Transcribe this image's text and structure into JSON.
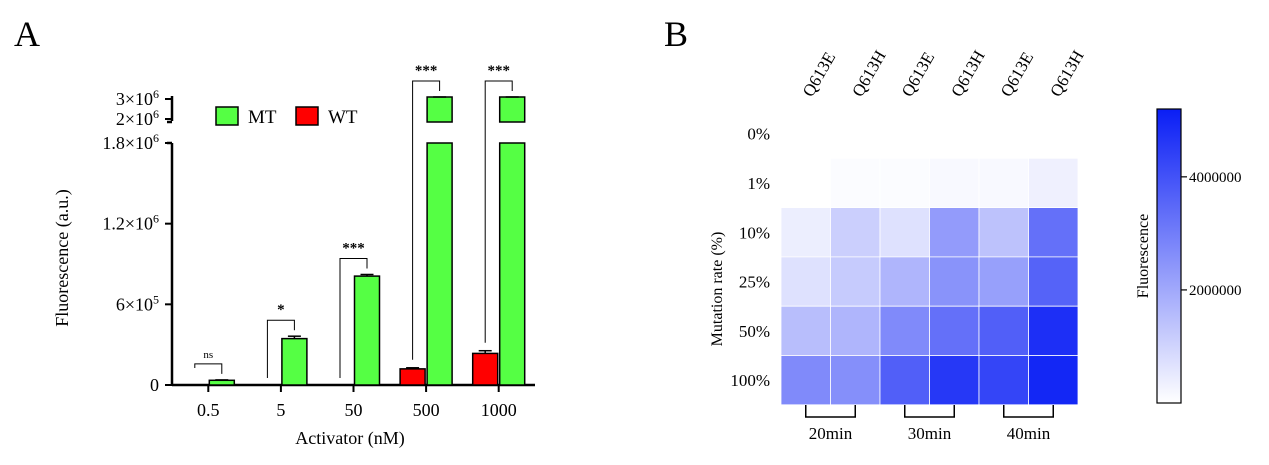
{
  "chart_data": [
    {
      "panel_label": "A",
      "type": "bar",
      "ylabel": "Fluorescence (a.u.)",
      "xlabel": "Activator (nM)",
      "categories": [
        "0.5",
        "5",
        "50",
        "500",
        "1000"
      ],
      "series": [
        {
          "name": "WT",
          "color": "#ff0000",
          "values": [
            0,
            0,
            0,
            120000,
            235000
          ],
          "errors": [
            0,
            0,
            0,
            8000,
            20000
          ]
        },
        {
          "name": "MT",
          "color": "#55ff44",
          "values": [
            35000,
            345000,
            810000,
            3100000,
            3150000
          ],
          "errors": [
            3000,
            18000,
            12000,
            60000,
            70000
          ]
        }
      ],
      "y_axis_lower": {
        "ylim": [
          0,
          1800000
        ],
        "ticks": [
          0,
          600000,
          1200000,
          1800000
        ],
        "tick_labels": [
          "0",
          "6×10",
          "1.2×10",
          "1.8×10"
        ],
        "tick_exponents": [
          "",
          "5",
          "6",
          "6"
        ]
      },
      "y_axis_upper": {
        "ylim": [
          2000000,
          3000000
        ],
        "ticks": [
          2000000,
          3000000
        ],
        "tick_labels": [
          "2×10",
          "3×10"
        ],
        "tick_exponents": [
          "6",
          "6"
        ]
      },
      "significance": [
        "ns",
        "*",
        "***",
        "***",
        "***"
      ]
    },
    {
      "panel_label": "B",
      "type": "heatmap",
      "ylabel": "Mutation rate (%)",
      "colorbar_label": "Fluorescence",
      "column_labels": [
        "Q613E",
        "Q613H",
        "Q613E",
        "Q613H",
        "Q613E",
        "Q613H"
      ],
      "time_groups": [
        "20min",
        "30min",
        "40min"
      ],
      "row_labels": [
        "0%",
        "1%",
        "10%",
        "25%",
        "50%",
        "100%"
      ],
      "values": [
        [
          null,
          null,
          null,
          null,
          null,
          null
        ],
        [
          0,
          80000,
          80000,
          150000,
          150000,
          350000
        ],
        [
          400000,
          1100000,
          700000,
          2300000,
          1400000,
          3300000
        ],
        [
          700000,
          1200000,
          1700000,
          2500000,
          2200000,
          3600000
        ],
        [
          1500000,
          1700000,
          2700000,
          3300000,
          3700000,
          4800000
        ],
        [
          2700000,
          2600000,
          3700000,
          4600000,
          4300000,
          5000000
        ]
      ],
      "color_min": 0,
      "color_max": 5200000,
      "color_low": "#ffffff",
      "color_high": "#0a1ef5",
      "colorbar_ticks": [
        2000000,
        4000000
      ],
      "colorbar_tick_labels": [
        "2000000",
        "4000000"
      ]
    }
  ]
}
